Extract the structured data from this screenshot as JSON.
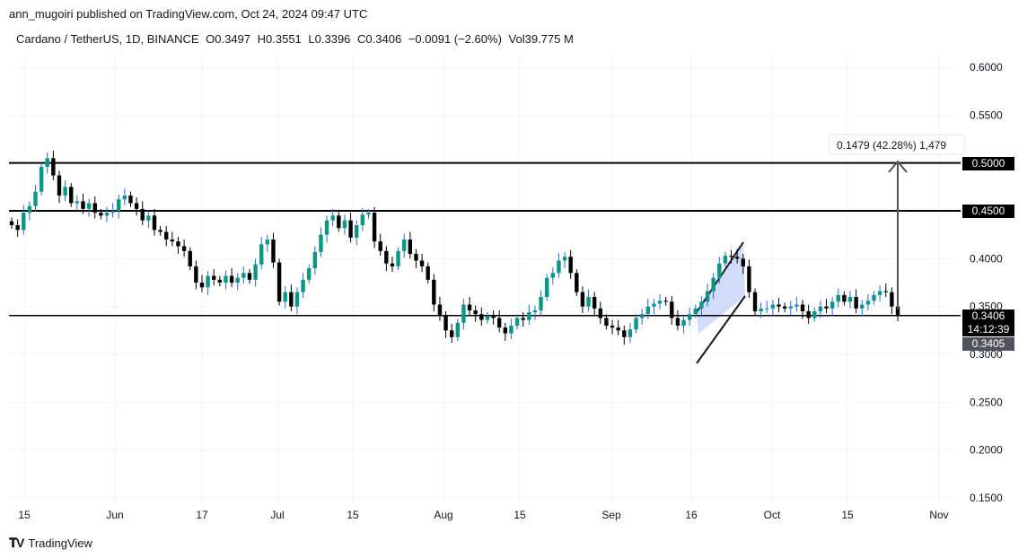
{
  "header": {
    "published": "ann_mugoiri published on TradingView.com, Oct 24, 2024 09:47 UTC"
  },
  "legend": {
    "symbol": "Cardano / TetherUS, 1D, BINANCE",
    "open": "O0.3497",
    "high": "H0.3551",
    "low": "L0.3396",
    "close": "C0.3406",
    "change": "−0.0091 (−2.60%)",
    "volume": "Vol39.775 M"
  },
  "price_badges": {
    "level_high": "0.5000",
    "level_mid": "0.4500",
    "last_price": "0.3406",
    "countdown": "14:12:39",
    "crosshair": "0.3405"
  },
  "measure_label": "0.1479 (42.28%) 1,479",
  "footer": {
    "brand": "TradingView"
  },
  "colors": {
    "up": "#089981",
    "down": "#000000",
    "wick_up": "#2962ff",
    "channel": "#c9d6f7"
  },
  "chart_data": {
    "type": "candlestick",
    "title": "",
    "xlabel": "",
    "ylabel": "",
    "ylim": [
      0.15,
      0.6
    ],
    "y_ticks": [
      "0.6000",
      "0.5500",
      "0.5000",
      "0.4500",
      "0.4000",
      "0.3500",
      "0.3000",
      "0.2500",
      "0.2000",
      "0.1500"
    ],
    "x_ticks": [
      "15",
      "Jun",
      "17",
      "Jul",
      "15",
      "Aug",
      "15",
      "Sep",
      "16",
      "Oct",
      "15",
      "Nov"
    ],
    "date_range": [
      "2024-05-13",
      "2024-10-24"
    ],
    "horizontal_levels": [
      0.5,
      0.45,
      0.3406
    ],
    "closes": [
      0.435,
      0.43,
      0.448,
      0.455,
      0.47,
      0.496,
      0.505,
      0.487,
      0.466,
      0.475,
      0.458,
      0.46,
      0.452,
      0.458,
      0.448,
      0.445,
      0.448,
      0.45,
      0.462,
      0.466,
      0.458,
      0.452,
      0.44,
      0.445,
      0.43,
      0.428,
      0.42,
      0.418,
      0.413,
      0.408,
      0.392,
      0.375,
      0.37,
      0.382,
      0.378,
      0.375,
      0.382,
      0.375,
      0.38,
      0.385,
      0.378,
      0.394,
      0.415,
      0.42,
      0.396,
      0.355,
      0.365,
      0.35,
      0.365,
      0.378,
      0.39,
      0.407,
      0.425,
      0.44,
      0.445,
      0.432,
      0.44,
      0.422,
      0.435,
      0.446,
      0.448,
      0.418,
      0.408,
      0.395,
      0.392,
      0.408,
      0.42,
      0.405,
      0.398,
      0.392,
      0.378,
      0.352,
      0.34,
      0.325,
      0.318,
      0.333,
      0.352,
      0.346,
      0.342,
      0.336,
      0.34,
      0.338,
      0.328,
      0.322,
      0.33,
      0.338,
      0.336,
      0.344,
      0.346,
      0.36,
      0.38,
      0.385,
      0.398,
      0.402,
      0.385,
      0.365,
      0.35,
      0.36,
      0.348,
      0.338,
      0.33,
      0.328,
      0.325,
      0.318,
      0.326,
      0.338,
      0.342,
      0.35,
      0.353,
      0.356,
      0.355,
      0.338,
      0.33,
      0.336,
      0.342,
      0.348,
      0.355,
      0.366,
      0.38,
      0.395,
      0.403,
      0.402,
      0.4,
      0.392,
      0.365,
      0.345,
      0.348,
      0.348,
      0.352,
      0.35,
      0.348,
      0.35,
      0.352,
      0.345,
      0.338,
      0.345,
      0.35,
      0.348,
      0.355,
      0.362,
      0.355,
      0.36,
      0.348,
      0.352,
      0.356,
      0.362,
      0.366,
      0.365,
      0.35,
      0.3406
    ]
  }
}
